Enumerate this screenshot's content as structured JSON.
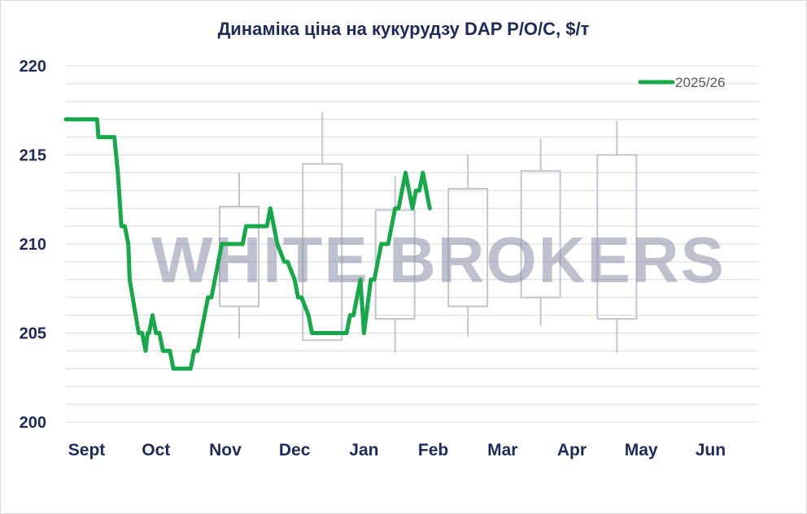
{
  "chart_data": {
    "type": "line",
    "title": "Динаміка ціна на кукурудзу DAP  Р/О/С, $/т",
    "watermark": "WHITE BROKERS",
    "ylim": [
      200,
      220
    ],
    "yticks": [
      200,
      205,
      210,
      215,
      220
    ],
    "ytick_labels": [
      "200",
      "205",
      "210",
      "215",
      "220"
    ],
    "xlim": [
      0,
      10
    ],
    "categories": [
      "Sept",
      "Oct",
      "Nov",
      "Dec",
      "Jan",
      "Feb",
      "Mar",
      "Apr",
      "May",
      "Jun"
    ],
    "grid": true,
    "legend_position": "top-right",
    "series": [
      {
        "name": "2025/26",
        "color": "#17a84a",
        "x": [
          0.0,
          0.45,
          0.47,
          0.7,
          0.75,
          0.8,
          0.85,
          0.9,
          0.92,
          1.05,
          1.1,
          1.15,
          1.18,
          1.2,
          1.25,
          1.3,
          1.35,
          1.4,
          1.5,
          1.55,
          1.6,
          1.8,
          1.85,
          1.9,
          1.95,
          2.05,
          2.1,
          2.2,
          2.25,
          2.3,
          2.35,
          2.55,
          2.6,
          2.65,
          2.9,
          2.95,
          3.0,
          3.05,
          3.15,
          3.2,
          3.3,
          3.35,
          3.4,
          3.5,
          3.55,
          3.6,
          3.65,
          3.7,
          4.05,
          4.1,
          4.15,
          4.2,
          4.25,
          4.3,
          4.4,
          4.45,
          4.5,
          4.55,
          4.65,
          4.7,
          4.75,
          4.8,
          4.85,
          4.9,
          5.0,
          5.05,
          5.1,
          5.15,
          5.25
        ],
        "values": [
          217,
          217,
          216,
          216,
          214,
          211,
          211,
          210,
          208,
          205,
          205,
          204,
          205,
          205,
          206,
          205,
          205,
          204,
          204,
          203,
          203,
          203,
          204,
          204,
          205,
          207,
          207,
          209,
          210,
          210,
          210,
          210,
          211,
          211,
          211,
          212,
          211,
          210,
          209,
          209,
          208,
          207,
          207,
          206,
          205,
          205,
          205,
          205,
          205,
          206,
          206,
          207,
          208,
          205,
          208,
          208,
          209,
          210,
          210,
          211,
          212,
          212,
          213,
          214,
          212,
          213,
          213,
          214,
          212
        ]
      }
    ],
    "range_boxes": [
      {
        "x": 2.5,
        "low": 204.7,
        "q1": 206.5,
        "q3": 212.1,
        "high": 214.0
      },
      {
        "x": 3.7,
        "low": 204.6,
        "q1": 204.6,
        "q3": 214.5,
        "high": 217.4
      },
      {
        "x": 4.75,
        "low": 203.9,
        "q1": 205.8,
        "q3": 211.9,
        "high": 213.8
      },
      {
        "x": 5.8,
        "low": 204.8,
        "q1": 206.5,
        "q3": 213.1,
        "high": 215.0
      },
      {
        "x": 6.85,
        "low": 205.4,
        "q1": 207.0,
        "q3": 214.1,
        "high": 215.9
      },
      {
        "x": 7.95,
        "low": 203.9,
        "q1": 205.8,
        "q3": 215.0,
        "high": 216.9
      }
    ]
  }
}
